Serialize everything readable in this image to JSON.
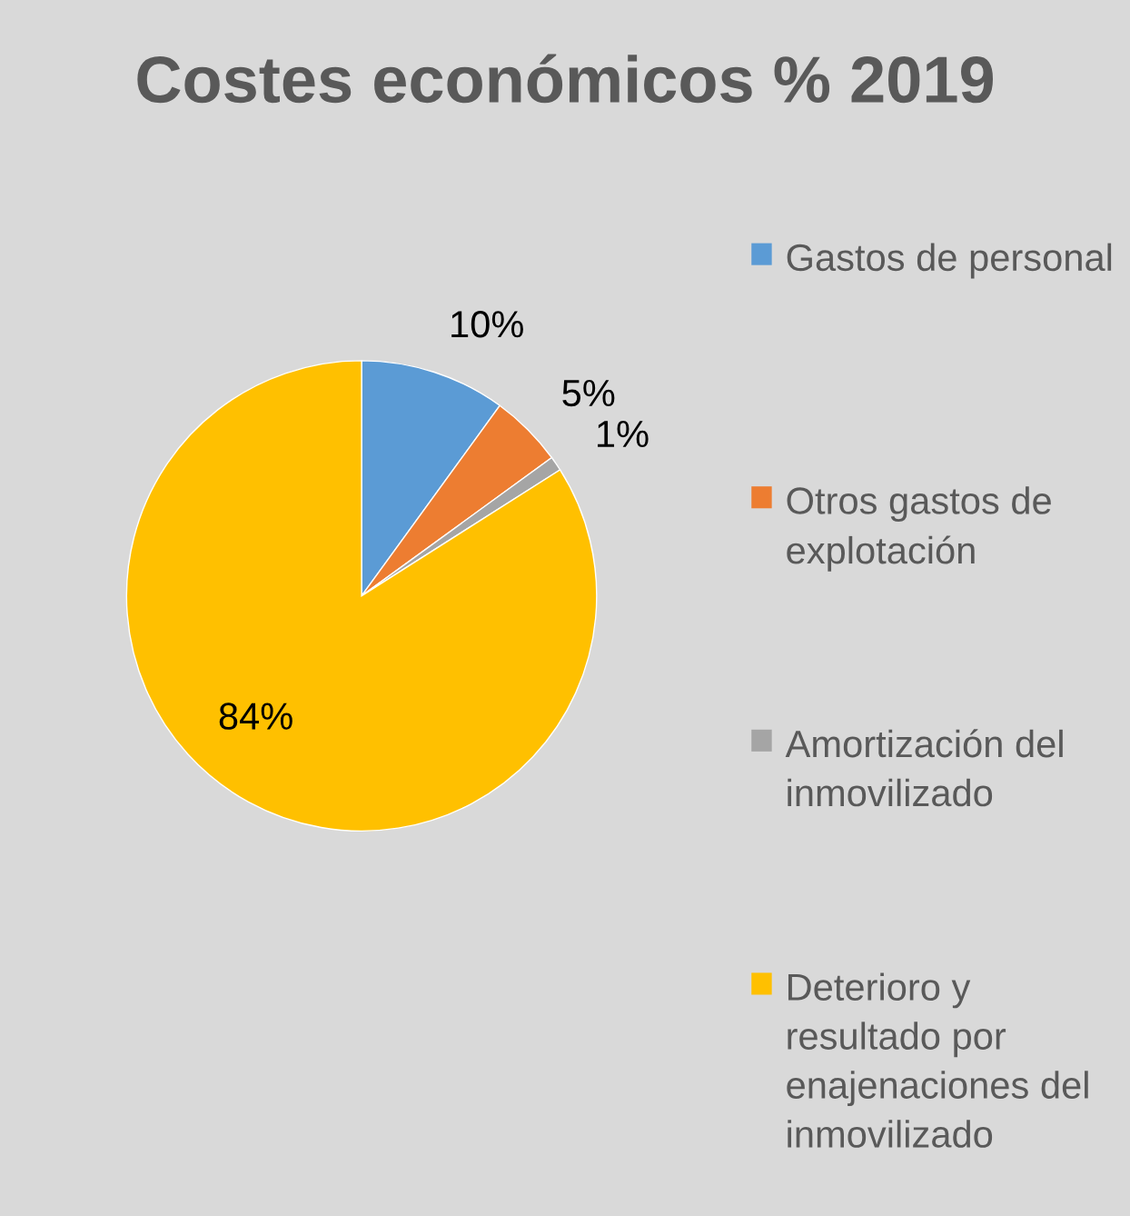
{
  "chart_data": {
    "type": "pie",
    "title": "Costes económicos % 2019",
    "categories": [
      "Gastos de personal",
      "Otros gastos de explotación",
      "Amortización del inmovilizado",
      "Deterioro y resultado por enajenaciones del inmovilizado"
    ],
    "values": [
      10,
      5,
      1,
      84
    ],
    "colors": [
      "#5b9bd5",
      "#ed7d31",
      "#a5a5a5",
      "#ffc000"
    ],
    "value_labels": [
      "10%",
      "5%",
      "1%",
      "84%"
    ],
    "legend": "right"
  }
}
